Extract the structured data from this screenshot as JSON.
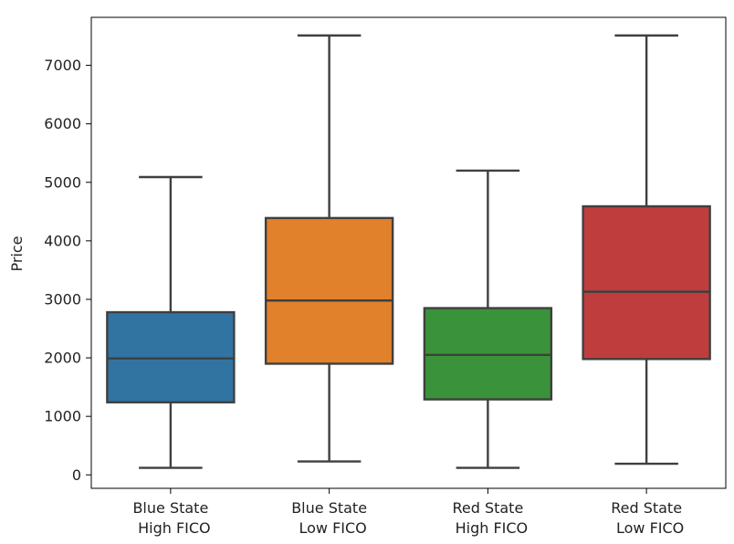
{
  "chart_data": {
    "type": "box",
    "title": "",
    "xlabel": "",
    "ylabel": "Price",
    "ylim": [
      -230,
      7820
    ],
    "yticks": [
      0,
      1000,
      2000,
      3000,
      4000,
      5000,
      6000,
      7000
    ],
    "yticklabels": [
      "0",
      "1000",
      "2000",
      "3000",
      "4000",
      "5000",
      "6000",
      "7000"
    ],
    "grid": false,
    "legend": "none",
    "categories": [
      {
        "line1": "Blue State",
        "line2": "High FICO"
      },
      {
        "line1": "Blue State",
        "line2": "Low FICO"
      },
      {
        "line1": "Red State",
        "line2": "High FICO"
      },
      {
        "line1": "Red State",
        "line2": "Low FICO"
      }
    ],
    "boxes": [
      {
        "whisker_low": 120,
        "q1": 1240,
        "median": 1990,
        "q3": 2780,
        "whisker_high": 5090,
        "color": "#3274a1"
      },
      {
        "whisker_low": 230,
        "q1": 1900,
        "median": 2980,
        "q3": 4390,
        "whisker_high": 7510,
        "color": "#e1812c"
      },
      {
        "whisker_low": 120,
        "q1": 1290,
        "median": 2050,
        "q3": 2850,
        "whisker_high": 5200,
        "color": "#3a923a"
      },
      {
        "whisker_low": 190,
        "q1": 1980,
        "median": 3130,
        "q3": 4590,
        "whisker_high": 7510,
        "color": "#c03d3e"
      }
    ],
    "line_color": "#3f3f3f"
  }
}
